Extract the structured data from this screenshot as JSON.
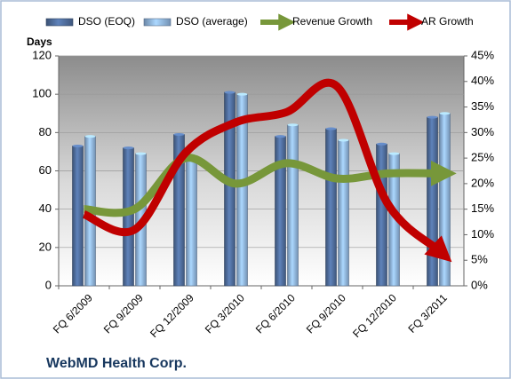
{
  "chart_data": {
    "type": "bar_line",
    "title": "WebMD Health Corp.",
    "y_label": "Days",
    "categories": [
      "FQ 6/2009",
      "FQ 9/2009",
      "FQ 12/2009",
      "FQ 3/2010",
      "FQ 6/2010",
      "FQ 9/2010",
      "FQ 12/2010",
      "FQ 3/2011"
    ],
    "series": [
      {
        "name": "DSO (EOQ)",
        "type": "bar",
        "color": "#4f6d9c",
        "values": [
          73,
          72,
          79,
          101,
          78,
          82,
          74,
          88
        ]
      },
      {
        "name": "DSO (average)",
        "type": "bar",
        "color": "#8fb4de",
        "values": [
          78,
          69,
          68,
          100,
          84,
          76,
          69,
          90
        ]
      },
      {
        "name": "Revenue Growth",
        "type": "line",
        "axis": "y2",
        "color": "#77973a",
        "values": [
          15,
          15,
          25,
          20,
          24,
          21,
          22,
          22
        ]
      },
      {
        "name": "AR Growth",
        "type": "line",
        "axis": "y2",
        "color": "#c00000",
        "values": [
          14,
          11,
          26,
          32,
          34,
          39,
          16,
          7
        ]
      }
    ],
    "ylim": [
      0,
      120
    ],
    "yticks": [
      0,
      20,
      40,
      60,
      80,
      100,
      120
    ],
    "y2lim": [
      0,
      45
    ],
    "y2ticks": [
      {
        "value": 0,
        "label": "0%"
      },
      {
        "value": 5,
        "label": "5%"
      },
      {
        "value": 10,
        "label": "10%"
      },
      {
        "value": 15,
        "label": "15%"
      },
      {
        "value": 20,
        "label": "20%"
      },
      {
        "value": 25,
        "label": "25%"
      },
      {
        "value": 30,
        "label": "30%"
      },
      {
        "value": 35,
        "label": "35%"
      },
      {
        "value": 40,
        "label": "40%"
      },
      {
        "value": 45,
        "label": "45%"
      }
    ],
    "grid": true,
    "legend": "top"
  }
}
